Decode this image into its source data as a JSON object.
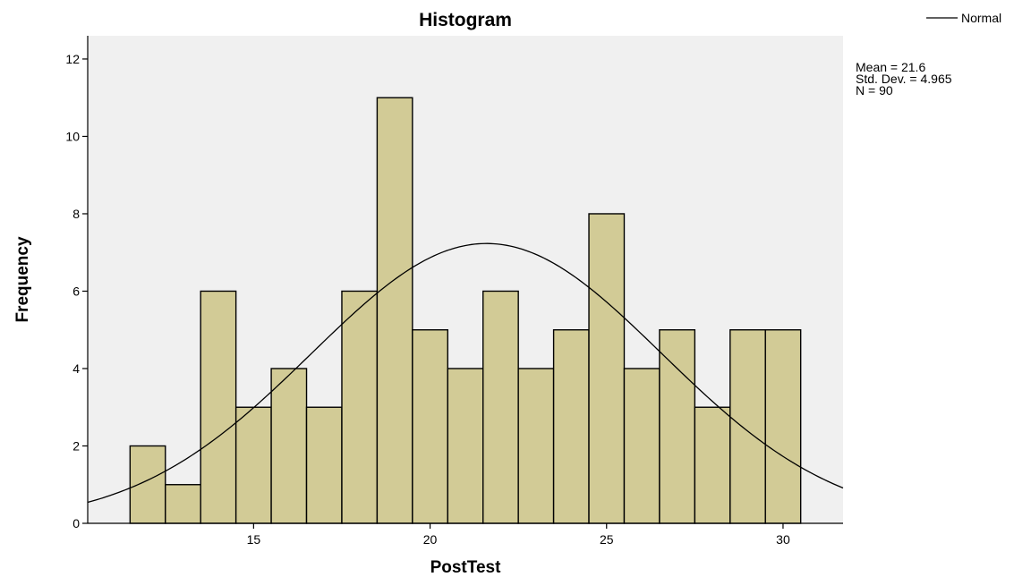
{
  "chart_data": {
    "type": "bar",
    "title": "Histogram",
    "xlabel": "PostTest",
    "ylabel": "Frequency",
    "xlim": [
      10.3,
      31.7
    ],
    "ylim": [
      0,
      12.6
    ],
    "x_ticks": [
      15,
      20,
      25,
      30
    ],
    "y_ticks": [
      0,
      2,
      4,
      6,
      8,
      10,
      12
    ],
    "bin_width": 1.0,
    "bins": [
      {
        "start": 11.5,
        "end": 12.5,
        "frequency": 2
      },
      {
        "start": 12.5,
        "end": 13.5,
        "frequency": 1
      },
      {
        "start": 13.5,
        "end": 14.5,
        "frequency": 6
      },
      {
        "start": 14.5,
        "end": 15.5,
        "frequency": 3
      },
      {
        "start": 15.5,
        "end": 16.5,
        "frequency": 4
      },
      {
        "start": 16.5,
        "end": 17.5,
        "frequency": 3
      },
      {
        "start": 17.5,
        "end": 18.5,
        "frequency": 6
      },
      {
        "start": 18.5,
        "end": 19.5,
        "frequency": 11
      },
      {
        "start": 19.5,
        "end": 20.5,
        "frequency": 5
      },
      {
        "start": 20.5,
        "end": 21.5,
        "frequency": 4
      },
      {
        "start": 21.5,
        "end": 22.5,
        "frequency": 6
      },
      {
        "start": 22.5,
        "end": 23.5,
        "frequency": 4
      },
      {
        "start": 23.5,
        "end": 24.5,
        "frequency": 5
      },
      {
        "start": 24.5,
        "end": 25.5,
        "frequency": 8
      },
      {
        "start": 25.5,
        "end": 26.5,
        "frequency": 4
      },
      {
        "start": 26.5,
        "end": 27.5,
        "frequency": 5
      },
      {
        "start": 27.5,
        "end": 28.5,
        "frequency": 3
      },
      {
        "start": 28.5,
        "end": 29.5,
        "frequency": 5
      },
      {
        "start": 29.5,
        "end": 30.5,
        "frequency": 5
      }
    ],
    "normal_curve": {
      "mean": 21.6,
      "std_dev": 4.965,
      "n": 90
    },
    "legend": {
      "entries": [
        "Normal"
      ],
      "placement": "top-right"
    },
    "stats_labels": [
      "Mean = 21.6",
      "Std. Dev. = 4.965",
      "N = 90"
    ],
    "grid": false,
    "colors": {
      "bar_fill": "#d2cb96",
      "bar_stroke": "#000000",
      "plot_background": "#f0f0f0",
      "curve": "#000000"
    }
  }
}
